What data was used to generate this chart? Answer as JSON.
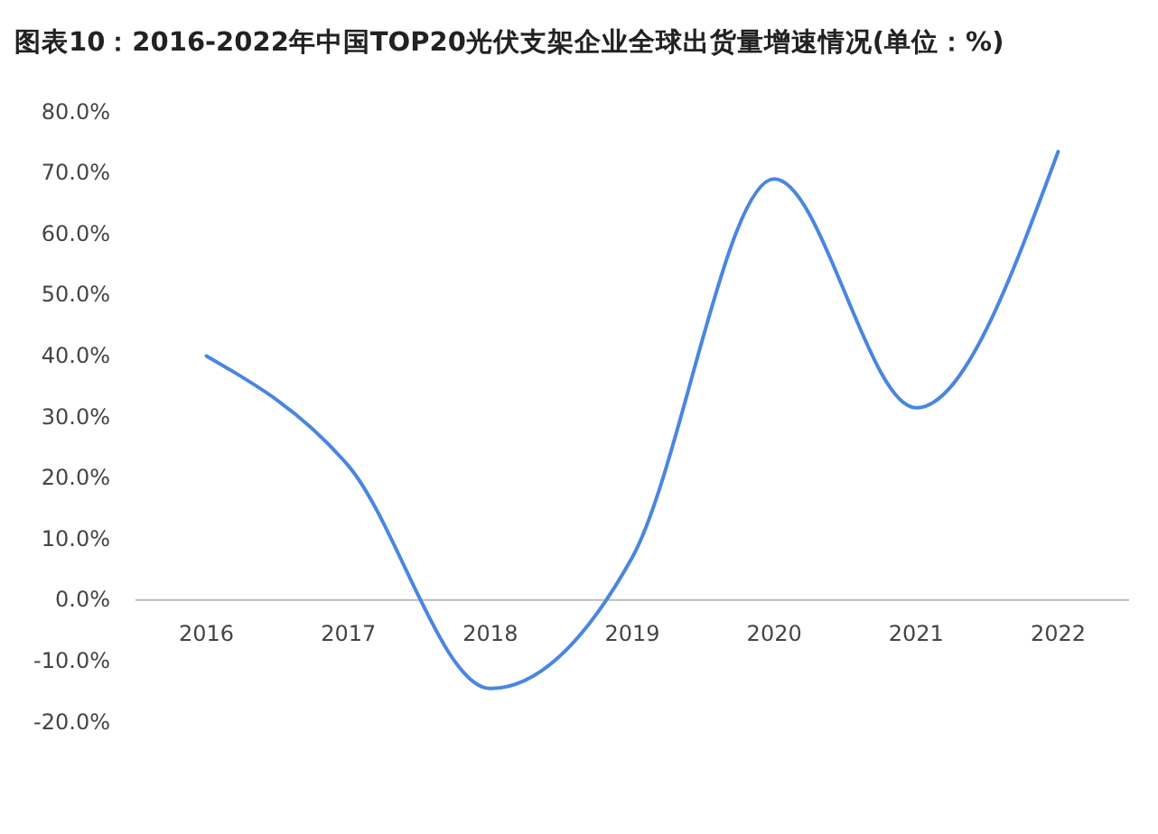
{
  "chart_data": {
    "type": "line",
    "title": "图表10：2016-2022年中国TOP20光伏支架企业全球出货量增速情况(单位：%)",
    "categories": [
      "2016",
      "2017",
      "2018",
      "2019",
      "2020",
      "2021",
      "2022"
    ],
    "series": [
      {
        "color": "#4a86e0",
        "values": [
          40,
          22,
          -14.5,
          7,
          69,
          31.5,
          73.5
        ]
      }
    ],
    "ylim": [
      -20,
      80
    ],
    "yticks": [
      {
        "value": -20,
        "label": "-20.0%"
      },
      {
        "value": -10,
        "label": "-10.0%"
      },
      {
        "value": 0,
        "label": "0.0%"
      },
      {
        "value": 10,
        "label": "10.0%"
      },
      {
        "value": 20,
        "label": "20.0%"
      },
      {
        "value": 30,
        "label": "30.0%"
      },
      {
        "value": 40,
        "label": "40.0%"
      },
      {
        "value": 50,
        "label": "50.0%"
      },
      {
        "value": 60,
        "label": "60.0%"
      },
      {
        "value": 70,
        "label": "70.0%"
      },
      {
        "value": 80,
        "label": "80.0%"
      }
    ],
    "grid": false,
    "marker": "none",
    "line_style": "solid"
  }
}
